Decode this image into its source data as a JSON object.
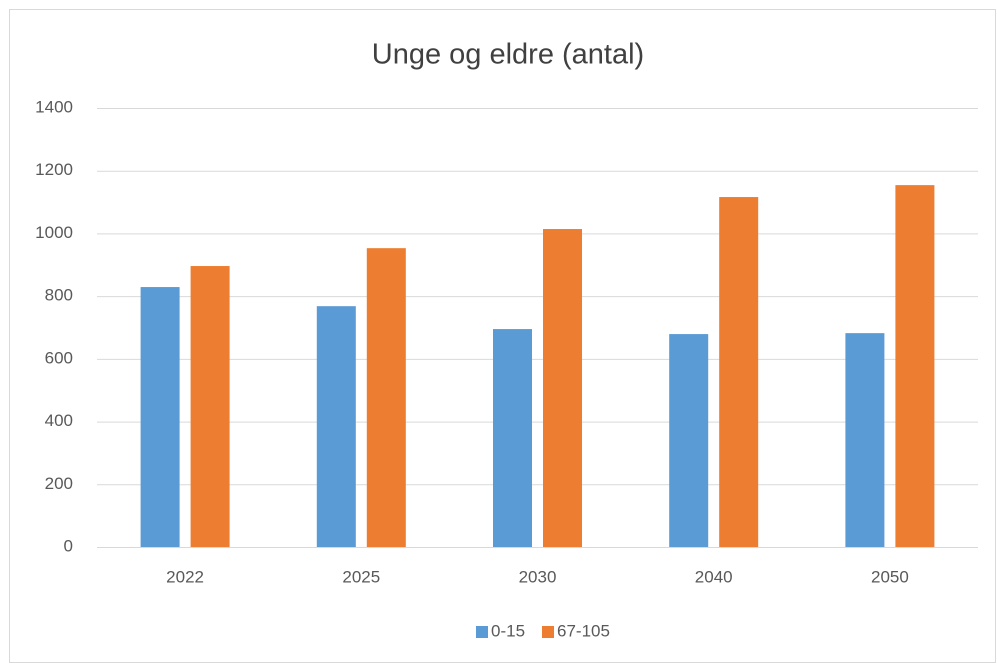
{
  "chart_data": {
    "type": "bar",
    "title": "Unge og eldre (antal)",
    "categories": [
      "2022",
      "2025",
      "2030",
      "2040",
      "2050"
    ],
    "series": [
      {
        "name": "0-15",
        "color": "#5b9bd5",
        "values": [
          829,
          768,
          695,
          679,
          682
        ]
      },
      {
        "name": "67-105",
        "color": "#ed7d31",
        "values": [
          896,
          953,
          1014,
          1116,
          1154
        ]
      }
    ],
    "ylim": [
      0,
      1400
    ],
    "yticks": [
      0,
      200,
      400,
      600,
      800,
      1000,
      1200,
      1400
    ],
    "grid": true,
    "legend": "bottom"
  }
}
